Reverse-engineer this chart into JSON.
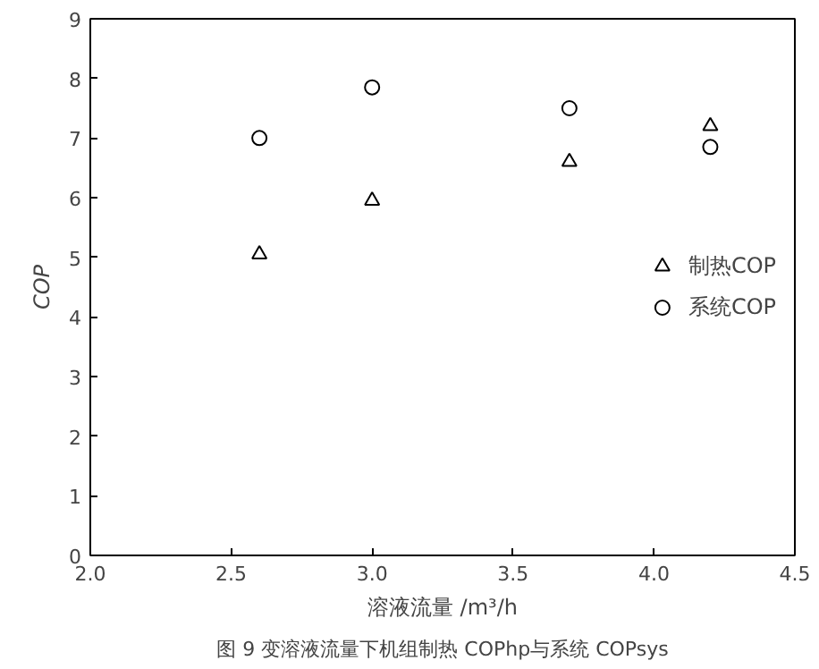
{
  "chart_data": {
    "type": "scatter",
    "xlabel": "溶液流量 /m³/h",
    "ylabel": "COP",
    "x": [
      2.6,
      3.0,
      3.7,
      4.2
    ],
    "series": [
      {
        "name": "制热COP",
        "color": "#000000",
        "marker": "triangle",
        "values": [
          5.05,
          5.95,
          6.6,
          7.2
        ]
      },
      {
        "name": "系统COP",
        "color": "#000000",
        "marker": "circle",
        "values": [
          7.0,
          7.85,
          7.5,
          6.85
        ]
      }
    ],
    "xlim": [
      2.0,
      4.5
    ],
    "xticks": [
      {
        "value": 2.0,
        "label": "2.0"
      },
      {
        "value": 2.5,
        "label": "2.5"
      },
      {
        "value": 3.0,
        "label": "3.0"
      },
      {
        "value": 3.5,
        "label": "3.5"
      },
      {
        "value": 4.0,
        "label": "4.0"
      },
      {
        "value": 4.5,
        "label": "4.5"
      }
    ],
    "ylim": [
      0,
      9
    ],
    "yticks": [
      0,
      1,
      2,
      3,
      4,
      5,
      6,
      7,
      8,
      9
    ],
    "grid": false,
    "legend": "right",
    "annotations": [
      "图 9 变溶液流量下机组制热 COPhp与系统 COPsys"
    ]
  }
}
